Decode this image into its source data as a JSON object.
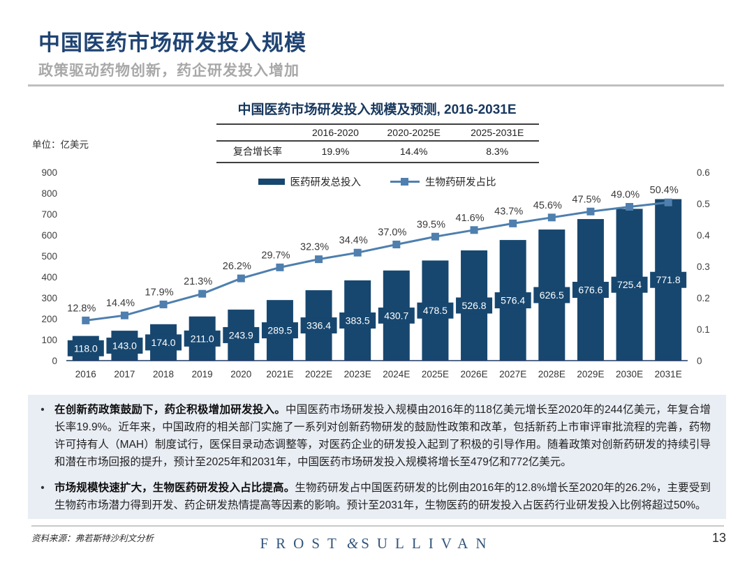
{
  "header": {
    "title": "中国医药市场研发投入规模",
    "subtitle": "政策驱动药物创新，药企研发投入增加"
  },
  "colors": {
    "title_navy": "#1F4373",
    "subtitle_gray": "#A8A8A8",
    "bar": "#17476F",
    "line": "#4E7FAE",
    "panel_bg": "#E9EDF4",
    "logo_navy": "#33557C",
    "axis_text": "#3f3f3f"
  },
  "growth_table": {
    "columns": [
      "2016-2020",
      "2020-2025E",
      "2025-2031E"
    ],
    "row_label": "复合增长率",
    "values": [
      "19.9%",
      "14.4%",
      "8.3%"
    ]
  },
  "chart_data": {
    "type": "bar",
    "title": "中国医药市场研发投入规模及预测, 2016-2031E",
    "unit_label": "单位：亿美元",
    "categories": [
      "2016",
      "2017",
      "2018",
      "2019",
      "2020",
      "2021E",
      "2022E",
      "2023E",
      "2024E",
      "2025E",
      "2026E",
      "2027E",
      "2028E",
      "2029E",
      "2030E",
      "2031E"
    ],
    "series": [
      {
        "name": "医药研发总投入",
        "type": "bar",
        "axis": "left",
        "values": [
          118.0,
          143.0,
          174.0,
          211.0,
          243.9,
          289.5,
          336.4,
          383.5,
          430.7,
          478.5,
          526.8,
          576.4,
          626.5,
          676.6,
          725.4,
          771.8
        ]
      },
      {
        "name": "生物药研发占比",
        "type": "line",
        "axis": "right",
        "values_percent": [
          12.8,
          14.4,
          17.9,
          21.3,
          26.2,
          29.7,
          32.3,
          34.4,
          37.0,
          39.5,
          41.6,
          43.7,
          45.6,
          47.5,
          49.0,
          50.4
        ]
      }
    ],
    "left_axis": {
      "min": 0,
      "max": 900,
      "step": 100
    },
    "right_axis": {
      "min": 0,
      "max": 0.6,
      "step": 0.1
    },
    "legend_position": "top",
    "grid": false
  },
  "bullets": [
    {
      "lead": "在创新药政策鼓励下，药企积极增加研发投入。",
      "body": "中国医药市场研发投入规模由2016年的118亿美元增长至2020年的244亿美元，年复合增长率19.9%。近年来，中国政府的相关部门实施了一系列对创新药物研发的鼓励性政策和改革，包括新药上市审评审批流程的完善，药物许可持有人（MAH）制度试行，医保目录动态调整等，对医药企业的研发投入起到了积极的引导作用。随着政策对创新药研发的持续引导和潜在市场回报的提升，预计至2025年和2031年，中国医药市场研发投入规模将增长至479亿和772亿美元。"
    },
    {
      "lead": "市场规模快速扩大，生物医药研发投入占比提高。",
      "body": "生物药研发占中国医药研发的比例由2016年的12.8%增长至2020年的26.2%，主要受到生物药市场潜力得到开发、药企研发热情提高等因素的影响。预计至2031年，生物医药的研发投入占医药行业研发投入比例将超过50%。"
    }
  ],
  "footer": {
    "source": "资料来源：弗若斯特沙利文分析",
    "logo": {
      "left": "FROST",
      "amp": "&",
      "right": "SULLIVAN"
    },
    "page": "13"
  }
}
